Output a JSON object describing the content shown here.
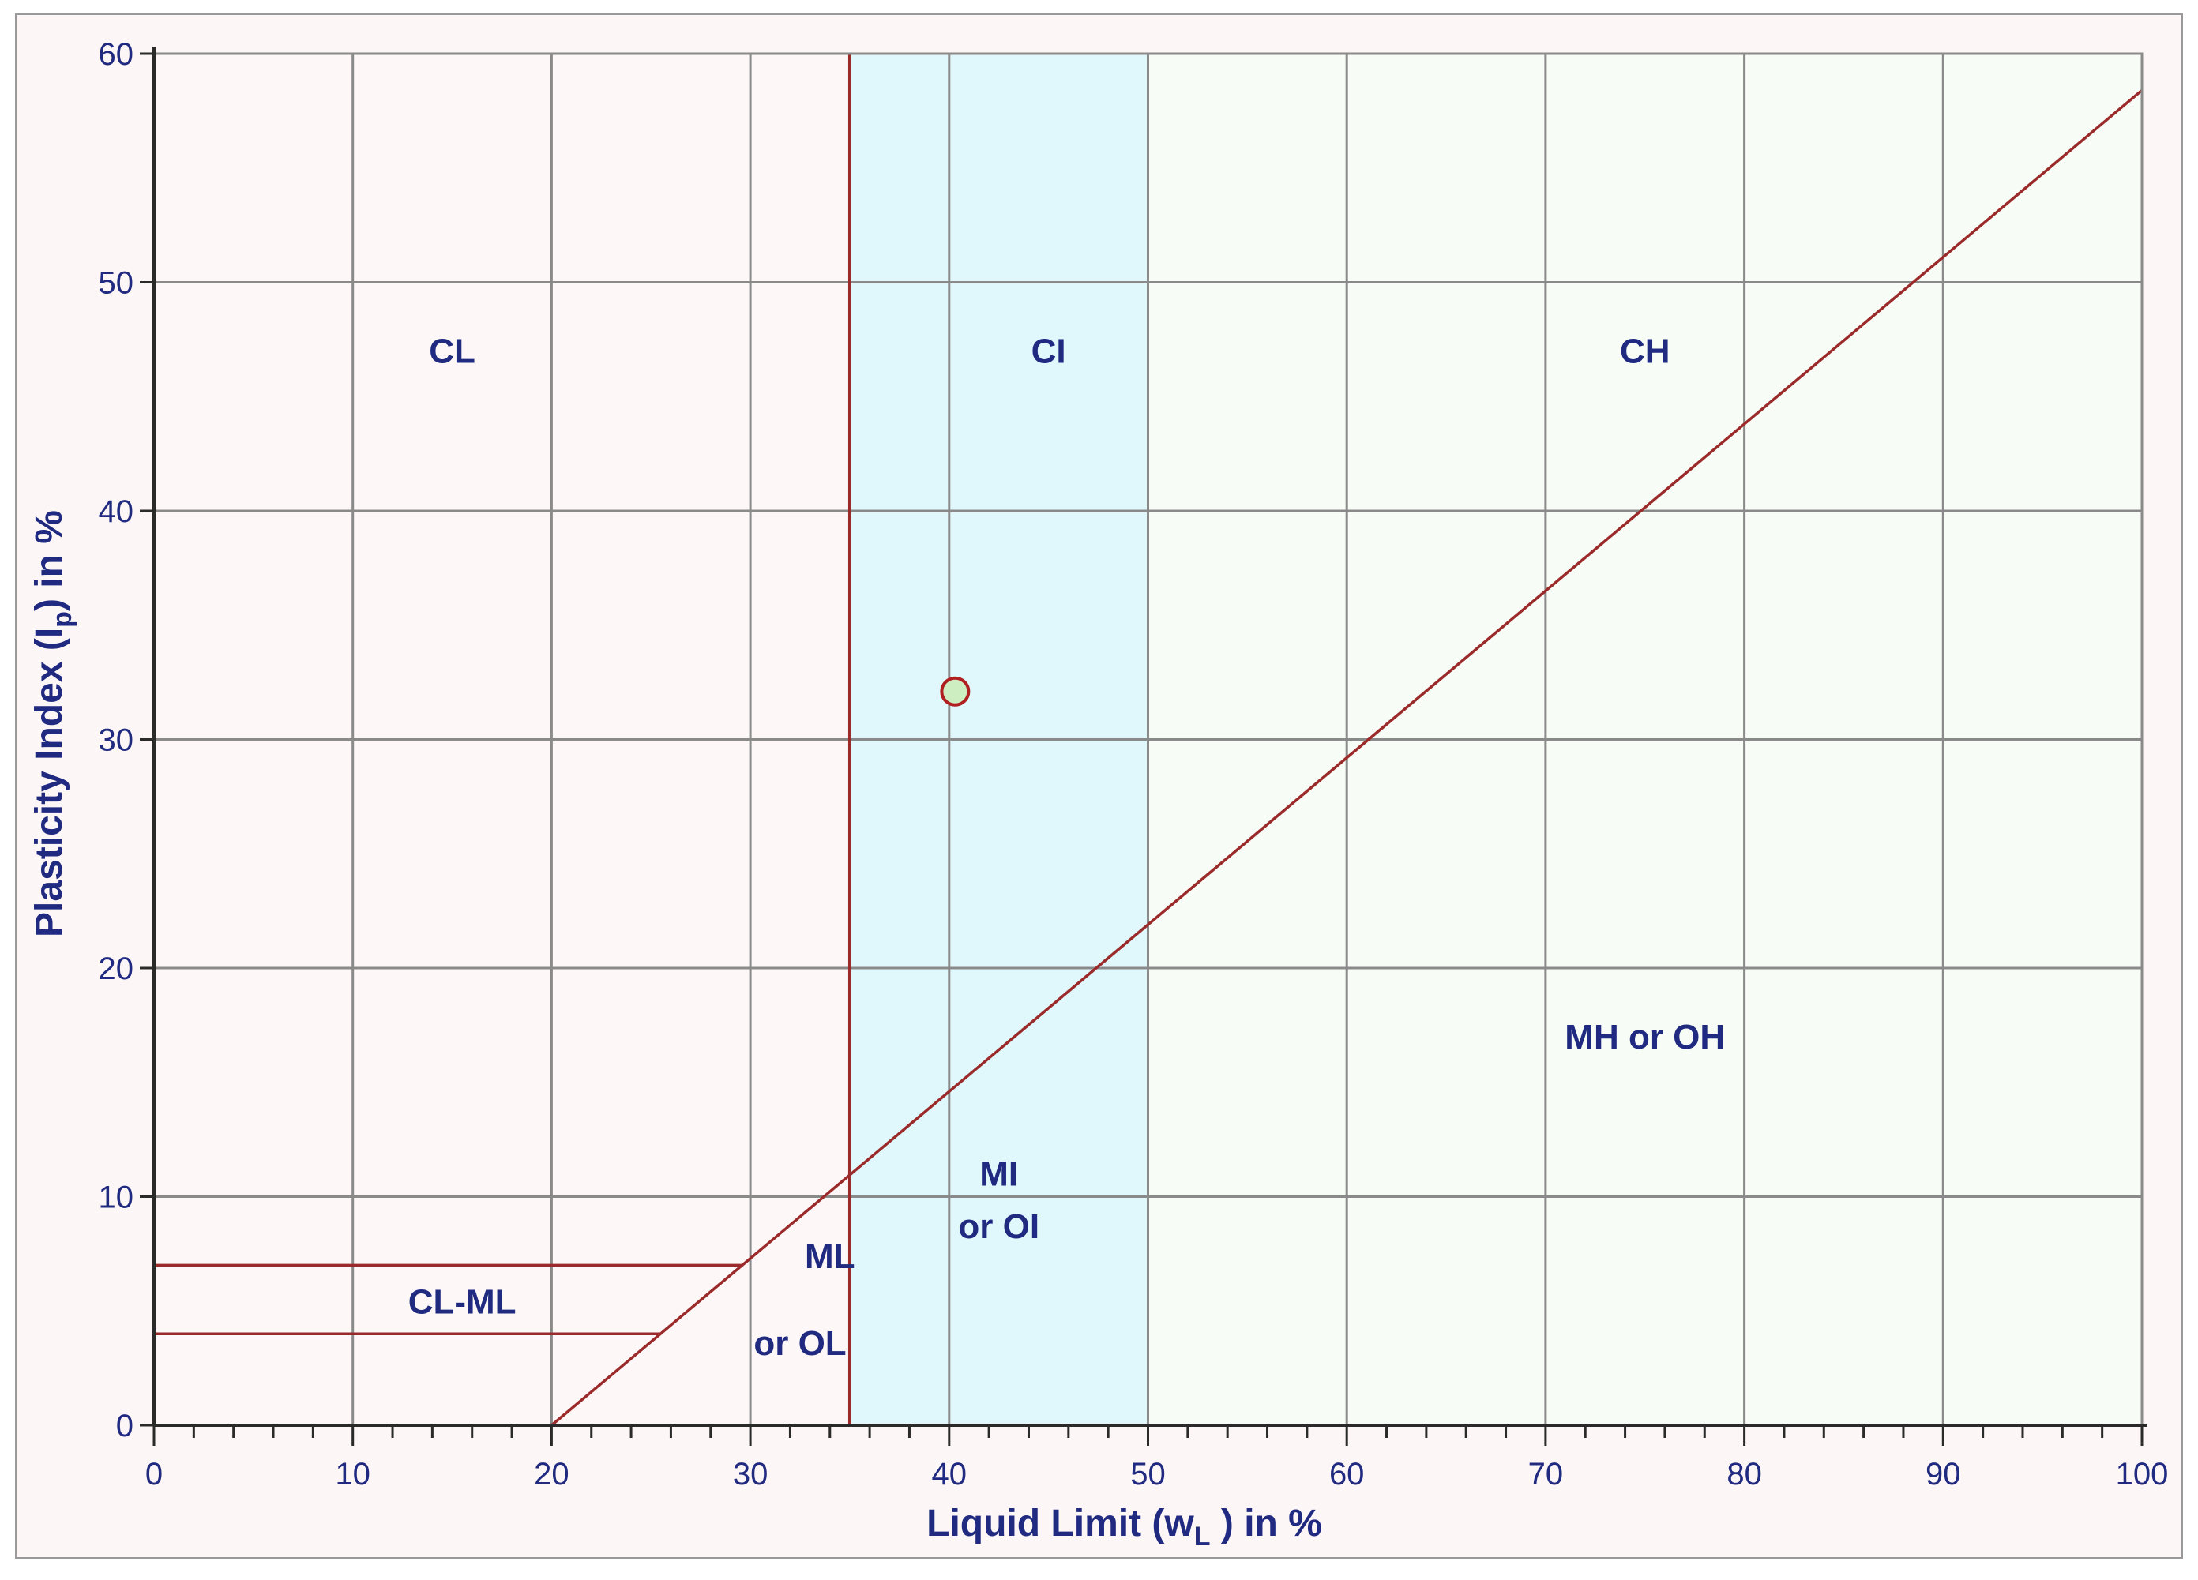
{
  "chart_data": {
    "type": "scatter",
    "xlabel": "Liquid Limit (w",
    "xlabel_subscript": "L",
    "xlabel_suffix": " ) in %",
    "ylabel": "Plasticity Index (I",
    "ylabel_subscript": "p",
    "ylabel_suffix": ") in %",
    "xlim": [
      0,
      100
    ],
    "ylim": [
      0,
      60
    ],
    "x_ticks": [
      "0",
      "10",
      "20",
      "30",
      "40",
      "50",
      "60",
      "70",
      "80",
      "90",
      "100"
    ],
    "y_ticks": [
      "0",
      "10",
      "20",
      "30",
      "40",
      "50",
      "60"
    ],
    "grid": true,
    "points": [
      {
        "x": 40.3,
        "y": 32.1
      }
    ],
    "a_line": {
      "x": [
        20,
        100
      ],
      "y": [
        0,
        58.4
      ]
    },
    "boundary_line_x": 35,
    "cl_ml_band": {
      "y_low": 4,
      "y_high": 7
    },
    "shaded_zone": {
      "x": [
        35,
        50
      ]
    },
    "zones": [
      {
        "label": "CL",
        "x": 15,
        "y": 47
      },
      {
        "label": "CI",
        "x": 45,
        "y": 47
      },
      {
        "label": "CH",
        "x": 75,
        "y": 47
      },
      {
        "label": "MH or OH",
        "x": 75,
        "y": 17
      },
      {
        "label": "MI",
        "x": 42.5,
        "y": 11
      },
      {
        "label": "or OI",
        "x": 42.5,
        "y": 8.7
      },
      {
        "label": "ML",
        "x": 34,
        "y": 7.4
      },
      {
        "label": "or OL",
        "x": 32.5,
        "y": 3.6
      },
      {
        "label": "CL-ML",
        "x": 15.5,
        "y": 5.4
      }
    ],
    "colors": {
      "background": "#fdf6f6",
      "plot_left": "#fdf7f7",
      "plot_mid": "#e0f8fb",
      "plot_right": "#f7fcf6",
      "grid": "#8a8a8a",
      "line": "#9b2a2a",
      "text": "#1f2a80",
      "point_fill": "#cdeec0",
      "point_stroke": "#b02020"
    }
  }
}
